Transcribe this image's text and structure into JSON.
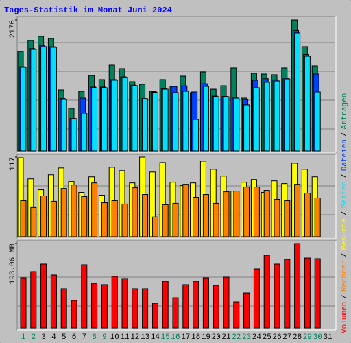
{
  "chart_data": [
    {
      "type": "bar",
      "title": "Tages-Statistik im Monat Juni 2024",
      "legend_separator": "/",
      "ylim": [
        0,
        2176
      ],
      "yticks": [
        2176
      ],
      "series": [
        {
          "name": "Anfragen",
          "color": "#00805c",
          "values": [
            1652,
            1835,
            1903,
            1869,
            1014,
            707,
            991,
            1253,
            1185,
            1424,
            1367,
            1151,
            1105,
            991,
            1185,
            1071,
            1242,
            969,
            1310,
            1025,
            1082,
            1379,
            877,
            1288,
            1276,
            1265,
            1379,
            2176,
            1732,
            1413,
            0
          ]
        },
        {
          "name": "Dateien",
          "color": "#0040ff",
          "values": [
            1400,
            1700,
            1750,
            1730,
            870,
            540,
            877,
            1060,
            1060,
            1185,
            1230,
            1090,
            870,
            980,
            1035,
            1070,
            1080,
            980,
            1115,
            910,
            905,
            880,
            855,
            1174,
            1200,
            1180,
            1210,
            2000,
            1600,
            1276,
            0
          ]
        },
        {
          "name": "Seiten",
          "color": "#00e0ff",
          "values": [
            1390,
            1686,
            1732,
            1721,
            855,
            536,
            627,
            1048,
            1048,
            1174,
            1219,
            1082,
            866,
            969,
            1025,
            969,
            991,
            524,
            1071,
            900,
            900,
            877,
            764,
            1048,
            1140,
            1162,
            1196,
            1960,
            1572,
            980,
            0
          ]
        }
      ]
    },
    {
      "type": "bar",
      "ylim": [
        0,
        117
      ],
      "yticks": [
        117
      ],
      "series": [
        {
          "name": "Besuche",
          "color": "#ffff00",
          "values": [
            116,
            85,
            69,
            91,
            101,
            81,
            65,
            88,
            61,
            102,
            97,
            79,
            117,
            95,
            109,
            80,
            75,
            79,
            111,
            99,
            89,
            67,
            80,
            84,
            65,
            82,
            78,
            108,
            99,
            88,
            0
          ]
        },
        {
          "name": "Rechner",
          "color": "#ff8000",
          "values": [
            53,
            43,
            60,
            52,
            71,
            76,
            59,
            79,
            50,
            53,
            48,
            72,
            62,
            29,
            47,
            49,
            77,
            58,
            62,
            49,
            66,
            67,
            73,
            73,
            68,
            55,
            53,
            77,
            64,
            57,
            0
          ]
        }
      ]
    },
    {
      "type": "bar",
      "ylim": [
        0,
        193.06
      ],
      "yticks": [
        {
          "value": 193.06,
          "label": "193.06 MB"
        }
      ],
      "categories": [
        "1",
        "2",
        "3",
        "4",
        "5",
        "6",
        "7",
        "8",
        "9",
        "10",
        "11",
        "12",
        "13",
        "14",
        "15",
        "16",
        "17",
        "18",
        "19",
        "20",
        "21",
        "22",
        "23",
        "24",
        "25",
        "26",
        "27",
        "28",
        "29",
        "30",
        "31"
      ],
      "category_colors": [
        "#00805c",
        "#00805c",
        "#000000",
        "#000000",
        "#000000",
        "#000000",
        "#000000",
        "#00805c",
        "#00805c",
        "#000000",
        "#000000",
        "#000000",
        "#000000",
        "#000000",
        "#00805c",
        "#00805c",
        "#000000",
        "#000000",
        "#000000",
        "#000000",
        "#000000",
        "#00805c",
        "#00805c",
        "#000000",
        "#000000",
        "#000000",
        "#000000",
        "#000000",
        "#00805c",
        "#00805c",
        "#000000"
      ],
      "series": [
        {
          "name": "Volumen",
          "color": "#ff0000",
          "values": [
            114.6,
            128.7,
            146,
            120.9,
            89.5,
            62.8,
            144.4,
            102,
            98.9,
            117.7,
            113,
            89.5,
            89.5,
            56.5,
            106.7,
            69,
            98.9,
            106.7,
            114.6,
            97.3,
            116.2,
            59.6,
            80,
            135,
            166.4,
            146,
            157,
            193.06,
            160,
            158.5,
            0
          ]
        }
      ]
    }
  ]
}
